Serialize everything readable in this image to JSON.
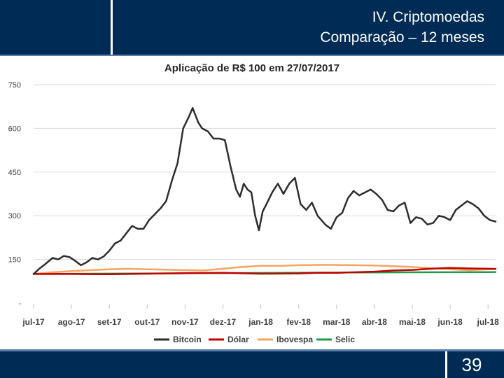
{
  "slide": {
    "title_line1": "IV. Criptomoedas",
    "title_line2": "Comparação – 12 meses",
    "page_number": "39"
  },
  "colors": {
    "header_bg": "#002b55",
    "bitcoin": "#2d2d2d",
    "dolar": "#c00000",
    "ibovespa": "#f4a460",
    "selic": "#1a9e4a",
    "gridline": "#d9d9d9"
  },
  "chart_data": {
    "type": "line",
    "title": "Aplicação de R$ 100 em 27/07/2017",
    "xlabel": "",
    "ylabel": "",
    "ylim": [
      0,
      750
    ],
    "y_ticks": [
      0,
      150,
      300,
      450,
      600,
      750
    ],
    "y_tick_labels": [
      "-",
      "150",
      "300",
      "450",
      "600",
      "750"
    ],
    "x_range": [
      0,
      12.2
    ],
    "categories": [
      "jul-17",
      "ago-17",
      "set-17",
      "out-17",
      "nov-17",
      "dez-17",
      "jan-18",
      "fev-18",
      "mar-18",
      "abr-18",
      "mai-18",
      "jun-18",
      "jul-18"
    ],
    "category_positions": [
      0,
      1,
      2,
      3,
      4,
      5,
      6,
      7,
      8,
      9,
      10,
      11,
      12
    ],
    "legend_position": "bottom",
    "series": [
      {
        "name": "Bitcoin",
        "color": "#2d2d2d",
        "x": [
          0,
          0.15,
          0.3,
          0.5,
          0.65,
          0.8,
          0.95,
          1.1,
          1.25,
          1.4,
          1.55,
          1.7,
          1.85,
          2.0,
          2.15,
          2.3,
          2.45,
          2.6,
          2.75,
          2.9,
          3.05,
          3.2,
          3.35,
          3.5,
          3.65,
          3.8,
          3.95,
          4.1,
          4.2,
          4.35,
          4.45,
          4.6,
          4.75,
          4.9,
          5.05,
          5.2,
          5.35,
          5.45,
          5.55,
          5.65,
          5.75,
          5.85,
          5.95,
          6.05,
          6.15,
          6.3,
          6.45,
          6.6,
          6.75,
          6.9,
          7.05,
          7.2,
          7.35,
          7.5,
          7.7,
          7.85,
          8.0,
          8.15,
          8.3,
          8.45,
          8.6,
          8.75,
          8.9,
          9.05,
          9.2,
          9.35,
          9.5,
          9.65,
          9.8,
          9.95,
          10.1,
          10.25,
          10.4,
          10.55,
          10.7,
          10.85,
          11.0,
          11.15,
          11.3,
          11.45,
          11.6,
          11.75,
          11.9,
          12.05,
          12.2
        ],
        "values": [
          100,
          118,
          133,
          155,
          150,
          162,
          158,
          145,
          130,
          140,
          155,
          150,
          160,
          180,
          205,
          215,
          240,
          265,
          255,
          255,
          285,
          305,
          325,
          350,
          420,
          480,
          600,
          640,
          670,
          620,
          600,
          590,
          565,
          565,
          560,
          470,
          390,
          365,
          410,
          390,
          380,
          300,
          250,
          315,
          340,
          380,
          410,
          375,
          410,
          430,
          340,
          320,
          345,
          300,
          270,
          255,
          295,
          310,
          360,
          385,
          370,
          380,
          390,
          375,
          355,
          320,
          315,
          335,
          345,
          275,
          295,
          290,
          270,
          275,
          300,
          295,
          285,
          320,
          335,
          350,
          340,
          325,
          300,
          285,
          280
        ]
      },
      {
        "name": "Dólar",
        "color": "#c00000",
        "x": [
          0,
          1,
          2,
          3,
          4,
          5,
          6,
          7,
          7.5,
          8,
          8.5,
          9,
          9.5,
          10,
          10.5,
          11,
          11.5,
          12,
          12.2
        ],
        "values": [
          100,
          100,
          99,
          101,
          103,
          104,
          101,
          102,
          104,
          104,
          106,
          108,
          112,
          114,
          118,
          121,
          119,
          118,
          117
        ]
      },
      {
        "name": "Ibovespa",
        "color": "#f4a460",
        "x": [
          0,
          0.5,
          1,
          1.5,
          2,
          2.5,
          3,
          3.5,
          4,
          4.5,
          5,
          5.5,
          6,
          6.5,
          7,
          7.5,
          8,
          8.5,
          9,
          9.5,
          10,
          10.5,
          11,
          11.5,
          12,
          12.2
        ],
        "values": [
          100,
          106,
          110,
          113,
          116,
          118,
          116,
          115,
          113,
          112,
          118,
          124,
          128,
          128,
          130,
          131,
          131,
          130,
          129,
          127,
          124,
          120,
          116,
          113,
          116,
          118
        ]
      },
      {
        "name": "Selic",
        "color": "#1a9e4a",
        "x": [
          0,
          2,
          4,
          6,
          8,
          10,
          12,
          12.2
        ],
        "values": [
          100,
          101.2,
          102.5,
          103.6,
          104.7,
          105.7,
          106.6,
          106.8
        ]
      }
    ]
  }
}
